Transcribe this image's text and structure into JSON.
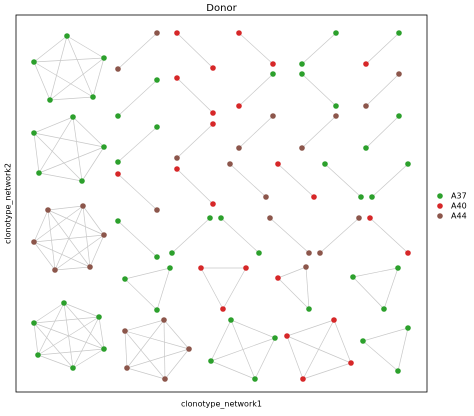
{
  "chart_data": {
    "type": "network",
    "title": "Donor",
    "xlabel": "clonotype_network1",
    "ylabel": "clonotype_network2",
    "series": [
      {
        "name": "A37",
        "color": "#2ca02c"
      },
      {
        "name": "A40",
        "color": "#d62728"
      },
      {
        "name": "A44",
        "color": "#8c564b"
      }
    ],
    "legend": "right",
    "xlim": [
      16,
      427
    ],
    "ylim": [
      392,
      15
    ],
    "clusters": [
      {
        "x": [
          67,
          104,
          93,
          50,
          34
        ],
        "y": [
          36,
          58,
          97,
          100,
          62
        ],
        "group": [
          0,
          0,
          0,
          0,
          0
        ]
      },
      {
        "x": [
          73,
          104,
          82,
          39,
          34
        ],
        "y": [
          117,
          147,
          181,
          173,
          133
        ],
        "group": [
          0,
          0,
          0,
          0,
          0
        ]
      },
      {
        "x": [
          48,
          83,
          104,
          90,
          55,
          34
        ],
        "y": [
          210,
          206,
          235,
          267,
          270,
          242
        ],
        "group": [
          2,
          2,
          2,
          2,
          2,
          2
        ]
      },
      {
        "x": [
          64,
          99,
          104,
          73,
          38,
          34
        ],
        "y": [
          303,
          317,
          349,
          368,
          355,
          323
        ],
        "group": [
          0,
          0,
          0,
          0,
          0,
          0
        ]
      },
      {
        "x": [
          125,
          164,
          189,
          165,
          127
        ],
        "y": [
          331,
          320,
          349,
          379,
          368
        ],
        "group": [
          2,
          2,
          2,
          2,
          2
        ]
      },
      {
        "x": [
          157,
          118
        ],
        "y": [
          33,
          69
        ],
        "group": [
          2,
          2
        ]
      },
      {
        "x": [
          177,
          213
        ],
        "y": [
          33,
          68
        ],
        "group": [
          1,
          1
        ]
      },
      {
        "x": [
          239,
          273
        ],
        "y": [
          33,
          64
        ],
        "group": [
          1,
          1
        ]
      },
      {
        "x": [
          336,
          302
        ],
        "y": [
          33,
          64
        ],
        "group": [
          0,
          0
        ]
      },
      {
        "x": [
          399,
          366
        ],
        "y": [
          33,
          64
        ],
        "group": [
          0,
          1
        ]
      },
      {
        "x": [
          157,
          118
        ],
        "y": [
          80,
          116
        ],
        "group": [
          0,
          0
        ]
      },
      {
        "x": [
          177,
          213
        ],
        "y": [
          78,
          113
        ],
        "group": [
          1,
          1
        ]
      },
      {
        "x": [
          273,
          239
        ],
        "y": [
          74,
          106
        ],
        "group": [
          0,
          1
        ]
      },
      {
        "x": [
          302,
          336
        ],
        "y": [
          74,
          106
        ],
        "group": [
          0,
          0
        ]
      },
      {
        "x": [
          399,
          366
        ],
        "y": [
          74,
          106
        ],
        "group": [
          2,
          2
        ]
      },
      {
        "x": [
          157,
          118
        ],
        "y": [
          127,
          162
        ],
        "group": [
          0,
          0
        ]
      },
      {
        "x": [
          213,
          177
        ],
        "y": [
          124,
          158
        ],
        "group": [
          1,
          2
        ]
      },
      {
        "x": [
          273,
          239
        ],
        "y": [
          116,
          148
        ],
        "group": [
          2,
          2
        ]
      },
      {
        "x": [
          336,
          302
        ],
        "y": [
          116,
          148
        ],
        "group": [
          2,
          2
        ]
      },
      {
        "x": [
          399,
          366
        ],
        "y": [
          116,
          148
        ],
        "group": [
          0,
          0
        ]
      },
      {
        "x": [
          177,
          213
        ],
        "y": [
          169,
          204
        ],
        "group": [
          1,
          1
        ]
      },
      {
        "x": [
          118,
          157
        ],
        "y": [
          174,
          210
        ],
        "group": [
          1,
          2
        ]
      },
      {
        "x": [
          230,
          266
        ],
        "y": [
          164,
          197
        ],
        "group": [
          2,
          2
        ]
      },
      {
        "x": [
          278,
          314
        ],
        "y": [
          164,
          197
        ],
        "group": [
          1,
          1
        ]
      },
      {
        "x": [
          325,
          361
        ],
        "y": [
          164,
          197
        ],
        "group": [
          0,
          0
        ]
      },
      {
        "x": [
          408,
          372
        ],
        "y": [
          164,
          197
        ],
        "group": [
          0,
          0
        ]
      },
      {
        "x": [
          118,
          157
        ],
        "y": [
          221,
          257
        ],
        "group": [
          0,
          0
        ]
      },
      {
        "x": [
          210,
          172
        ],
        "y": [
          218,
          253
        ],
        "group": [
          0,
          0
        ]
      },
      {
        "x": [
          221,
          259
        ],
        "y": [
          218,
          253
        ],
        "group": [
          0,
          0
        ]
      },
      {
        "x": [
          270,
          309
        ],
        "y": [
          218,
          253
        ],
        "group": [
          2,
          2
        ]
      },
      {
        "x": [
          359,
          320
        ],
        "y": [
          218,
          253
        ],
        "group": [
          2,
          2
        ]
      },
      {
        "x": [
          370,
          408
        ],
        "y": [
          218,
          253
        ],
        "group": [
          1,
          1
        ]
      },
      {
        "x": [
          170,
          125,
          157
        ],
        "y": [
          268,
          279,
          310
        ],
        "group": [
          0,
          0,
          0
        ]
      },
      {
        "x": [
          201,
          246,
          223
        ],
        "y": [
          268,
          268,
          309
        ],
        "group": [
          1,
          1,
          1
        ]
      },
      {
        "x": [
          306,
          278,
          309
        ],
        "y": [
          267,
          278,
          309
        ],
        "group": [
          2,
          1,
          0
        ]
      },
      {
        "x": [
          398,
          353,
          384
        ],
        "y": [
          268,
          277,
          309
        ],
        "group": [
          0,
          0,
          0
        ]
      },
      {
        "x": [
          231,
          275,
          211,
          255
        ],
        "y": [
          320,
          338,
          361,
          379
        ],
        "group": [
          0,
          0,
          0,
          0
        ]
      },
      {
        "x": [
          287,
          334,
          351,
          303
        ],
        "y": [
          336,
          320,
          363,
          379
        ],
        "group": [
          1,
          1,
          1,
          1
        ]
      },
      {
        "x": [
          408,
          363,
          398
        ],
        "y": [
          328,
          341,
          371
        ],
        "group": [
          0,
          0,
          0
        ]
      }
    ]
  }
}
